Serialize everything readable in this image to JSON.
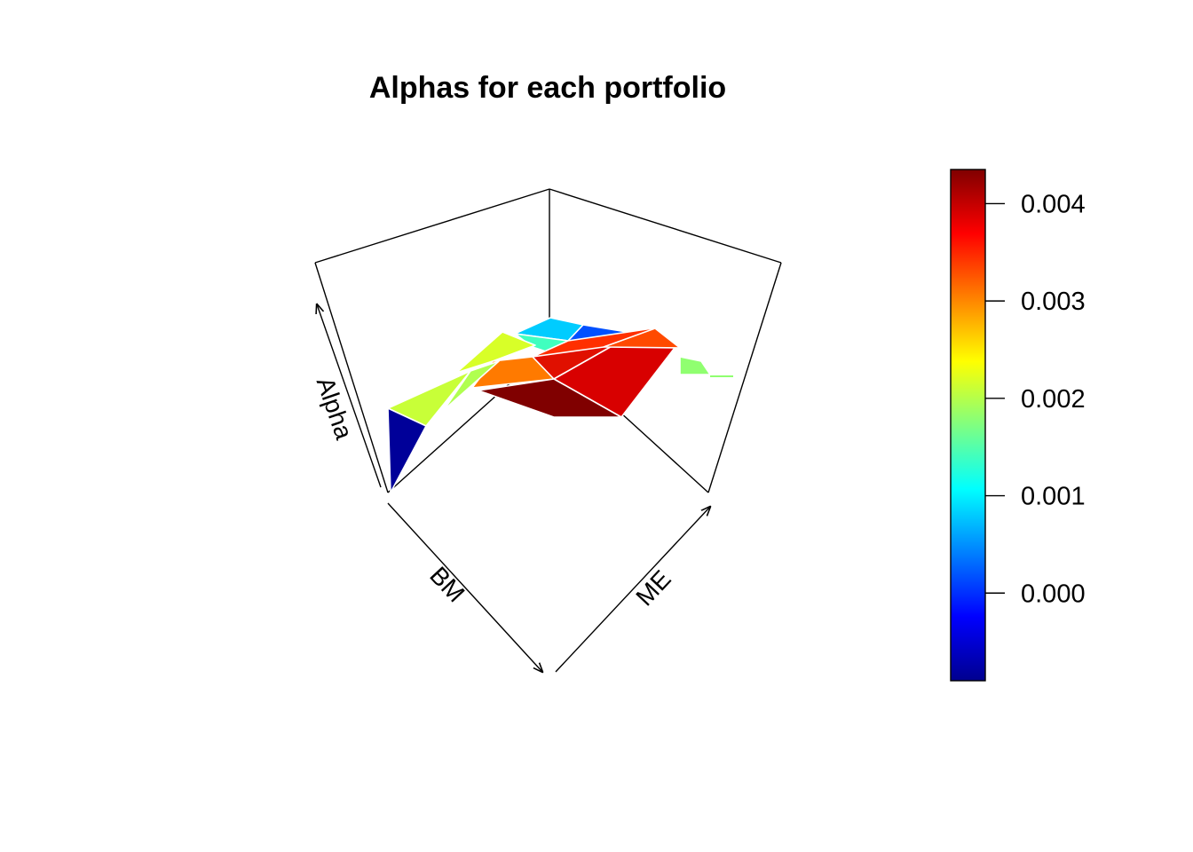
{
  "chart_data": {
    "type": "surface3d",
    "title": "Alphas for each portfolio",
    "x_axis_label": "BM",
    "y_axis_label": "ME",
    "z_axis_label": "Alpha",
    "colorbar": {
      "palette": "jet",
      "colors": [
        "#00008f",
        "#0000ff",
        "#0080ff",
        "#00ffff",
        "#80ff80",
        "#ffff00",
        "#ff8000",
        "#ff0000",
        "#800000"
      ],
      "range": [
        -0.0009,
        0.00435
      ],
      "ticks": [
        0.0,
        0.001,
        0.002,
        0.003,
        0.004
      ],
      "tick_labels": [
        "0.000",
        "0.001",
        "0.002",
        "0.003",
        "0.004"
      ]
    },
    "facets": [
      {
        "value": 0.0007,
        "color": "#00ccff"
      },
      {
        "value": -0.0002,
        "color": "#0050ff"
      },
      {
        "value": 0.0014,
        "color": "#40ffbf"
      },
      {
        "value": 0.0021,
        "color": "#d8ff28"
      },
      {
        "value": 0.0039,
        "color": "#ff3000"
      },
      {
        "value": 0.0031,
        "color": "#ff7a00"
      },
      {
        "value": 0.004,
        "color": "#e01000"
      },
      {
        "value": 0.0043,
        "color": "#d80000"
      },
      {
        "value": 0.0044,
        "color": "#800000"
      },
      {
        "value": 0.0033,
        "color": "#ff4a00"
      },
      {
        "value": 0.0021,
        "color": "#c8ff38"
      },
      {
        "value": 0.0019,
        "color": "#b0ff50"
      },
      {
        "value": 0.0018,
        "color": "#90ff70"
      },
      {
        "value": -0.0009,
        "color": "#000099"
      }
    ]
  }
}
